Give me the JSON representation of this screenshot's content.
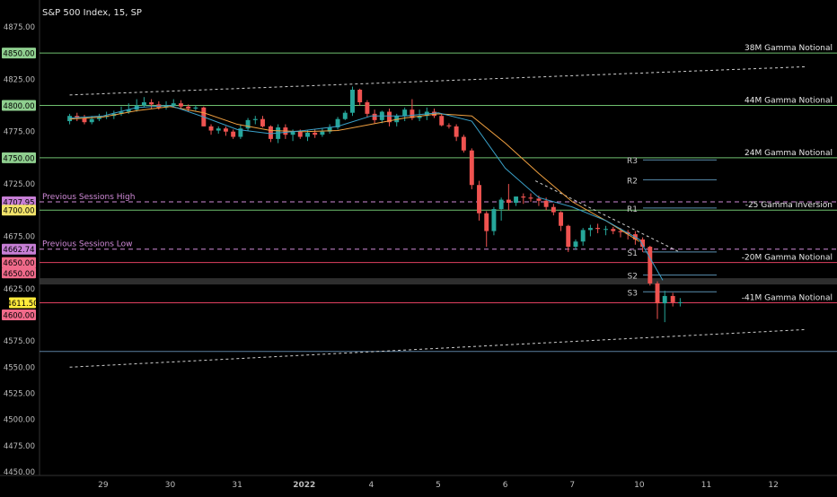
{
  "chart_data": {
    "type": "candlestick",
    "title": "S&P 500 Index, 15, SP",
    "ylim": [
      4450,
      4875
    ],
    "yticks": [
      "4875.00",
      "4850.00",
      "4825.00",
      "4800.00",
      "4775.00",
      "4750.00",
      "4725.00",
      "4700.00",
      "4675.00",
      "4650.00",
      "4625.00",
      "4600.00",
      "4575.00",
      "4550.00",
      "4525.00",
      "4500.00",
      "4475.00",
      "4450.00"
    ],
    "xticks": [
      {
        "label": "29",
        "x": 29.5
      },
      {
        "label": "30",
        "x": 30.5
      },
      {
        "label": "31",
        "x": 31.5
      },
      {
        "label": "2022",
        "x": 32.5
      },
      {
        "label": "4",
        "x": 33.5
      },
      {
        "label": "5",
        "x": 34.5
      },
      {
        "label": "6",
        "x": 35.5
      },
      {
        "label": "7",
        "x": 36.5
      },
      {
        "label": "10",
        "x": 37.5
      },
      {
        "label": "11",
        "x": 38.5
      },
      {
        "label": "12",
        "x": 39.5
      }
    ],
    "current_price_label": "4611.50",
    "price_badges": [
      {
        "text": "4850.00",
        "y": 4850,
        "color": "#8fcf8f"
      },
      {
        "text": "4800.00",
        "y": 4800,
        "color": "#8fcf8f"
      },
      {
        "text": "4750.00",
        "y": 4750,
        "color": "#8fcf8f"
      },
      {
        "text": "4707.95",
        "y": 4707.95,
        "color": "#c77fd6"
      },
      {
        "text": "4700.00",
        "y": 4700,
        "color": "#f2e36a"
      },
      {
        "text": "4662.74",
        "y": 4662.74,
        "color": "#c77fd6"
      },
      {
        "text": "4650.00",
        "y": 4650,
        "color": "#f06a8a"
      },
      {
        "text": "4650.00",
        "y": 4640,
        "color": "#f06a8a"
      },
      {
        "text": "4600.00",
        "y": 4600,
        "color": "#f06a8a"
      }
    ],
    "levels": [
      {
        "y": 4850,
        "label": "38M Gamma Notional",
        "color": "#6fbf6f",
        "style": "solid"
      },
      {
        "y": 4800,
        "label": "44M Gamma Notional",
        "color": "#6fbf6f",
        "style": "solid"
      },
      {
        "y": 4750,
        "label": "24M Gamma Notional",
        "color": "#6fbf6f",
        "style": "solid"
      },
      {
        "y": 4707.95,
        "label": "Previous Sessions High",
        "color": "#d08ad8",
        "style": "dashed"
      },
      {
        "y": 4700,
        "label": "-25 Gamma Inversion",
        "color": "#6fbf6f",
        "style": "solid"
      },
      {
        "y": 4662.74,
        "label": "Previous Sessions Low",
        "color": "#d08ad8",
        "style": "dashed"
      },
      {
        "y": 4650,
        "label": "-20M Gamma Notional",
        "color": "#e04060",
        "style": "solid"
      },
      {
        "y": 4611.5,
        "label": "-41M Gamma Notional",
        "color": "#e04060",
        "style": "solid"
      },
      {
        "y": 4565,
        "label": "",
        "color": "#5a7fa0",
        "style": "solid"
      }
    ],
    "pivots": [
      {
        "label": "R3",
        "y": 4748
      },
      {
        "label": "R2",
        "y": 4729
      },
      {
        "label": "R1",
        "y": 4702
      },
      {
        "label": "S1",
        "y": 4660
      },
      {
        "label": "S2",
        "y": 4638
      },
      {
        "label": "S3",
        "y": 4622
      }
    ],
    "trendlines": [
      {
        "x1": 29.0,
        "y1": 4810,
        "x2": 40.0,
        "y2": 4837
      },
      {
        "x1": 29.0,
        "y1": 4550,
        "x2": 40.0,
        "y2": 4586
      },
      {
        "x1": 35.95,
        "y1": 4728,
        "x2": 38.1,
        "y2": 4660
      }
    ],
    "series": [
      {
        "name": "",
        "kind": "ohlc",
        "color_up": "#26a69a",
        "color_down": "#ef5350",
        "x": [
          29.0,
          29.11,
          29.22,
          29.33,
          29.44,
          29.55,
          29.66,
          29.77,
          29.88,
          30.0,
          30.11,
          30.22,
          30.33,
          30.44,
          30.55,
          30.66,
          30.77,
          30.88,
          31.0,
          31.11,
          31.22,
          31.33,
          31.44,
          31.55,
          31.66,
          31.77,
          31.88,
          32.0,
          32.11,
          32.22,
          32.33,
          32.44,
          32.55,
          32.66,
          32.77,
          32.88,
          33.0,
          33.11,
          33.22,
          33.33,
          33.44,
          33.55,
          33.66,
          33.77,
          33.88,
          34.0,
          34.11,
          34.22,
          34.33,
          34.44,
          34.55,
          34.66,
          34.77,
          34.88,
          35.0,
          35.11,
          35.22,
          35.33,
          35.44,
          35.55,
          35.66,
          35.77,
          35.88,
          36.0,
          36.11,
          36.22,
          36.33,
          36.44,
          36.55,
          36.66,
          36.77,
          36.88,
          37.0,
          37.11,
          37.22,
          37.33,
          37.44,
          37.55,
          37.66,
          37.77,
          37.88,
          38.0,
          38.11
        ],
        "o": [
          4785,
          4790,
          4788,
          4784,
          4787,
          4789,
          4790,
          4792,
          4794,
          4796,
          4800,
          4803,
          4801,
          4798,
          4800,
          4802,
          4799,
          4797,
          4798,
          4780,
          4776,
          4778,
          4775,
          4770,
          4778,
          4786,
          4787,
          4780,
          4768,
          4779,
          4772,
          4775,
          4770,
          4774,
          4772,
          4775,
          4779,
          4787,
          4793,
          4815,
          4803,
          4792,
          4786,
          4794,
          4784,
          4790,
          4796,
          4788,
          4790,
          4794,
          4790,
          4781,
          4780,
          4770,
          4757,
          4724,
          4697,
          4680,
          4701,
          4710,
          4707,
          4713,
          4712,
          4711,
          4709,
          4703,
          4698,
          4685,
          4665,
          4670,
          4681,
          4683,
          4682,
          4682,
          4680,
          4679,
          4677,
          4672,
          4665,
          4630,
          4611,
          4618,
          4612
        ],
        "h": [
          4792,
          4793,
          4791,
          4790,
          4792,
          4794,
          4795,
          4799,
          4802,
          4806,
          4808,
          4806,
          4804,
          4804,
          4806,
          4805,
          4801,
          4800,
          4799,
          4782,
          4780,
          4780,
          4777,
          4782,
          4788,
          4790,
          4790,
          4781,
          4782,
          4782,
          4777,
          4777,
          4776,
          4777,
          4778,
          4782,
          4789,
          4795,
          4818,
          4816,
          4805,
          4796,
          4795,
          4797,
          4792,
          4798,
          4806,
          4796,
          4798,
          4797,
          4792,
          4783,
          4782,
          4772,
          4759,
          4728,
          4699,
          4703,
          4712,
          4725,
          4713,
          4716,
          4716,
          4714,
          4712,
          4706,
          4699,
          4686,
          4672,
          4683,
          4686,
          4687,
          4685,
          4684,
          4683,
          4681,
          4680,
          4674,
          4666,
          4632,
          4623,
          4621,
          4616
        ],
        "l": [
          4782,
          4785,
          4782,
          4782,
          4785,
          4787,
          4787,
          4790,
          4792,
          4794,
          4798,
          4797,
          4796,
          4796,
          4798,
          4796,
          4794,
          4795,
          4780,
          4772,
          4773,
          4771,
          4768,
          4768,
          4776,
          4782,
          4779,
          4765,
          4764,
          4768,
          4766,
          4768,
          4766,
          4769,
          4770,
          4773,
          4777,
          4786,
          4790,
          4800,
          4789,
          4783,
          4783,
          4780,
          4780,
          4785,
          4786,
          4785,
          4786,
          4788,
          4780,
          4778,
          4766,
          4755,
          4720,
          4690,
          4665,
          4676,
          4690,
          4700,
          4704,
          4706,
          4708,
          4704,
          4700,
          4695,
          4680,
          4660,
          4662,
          4666,
          4675,
          4678,
          4676,
          4677,
          4674,
          4672,
          4667,
          4660,
          4628,
          4596,
          4593,
          4608,
          4608
        ],
        "c": [
          4790,
          4788,
          4784,
          4787,
          4789,
          4790,
          4792,
          4794,
          4796,
          4800,
          4803,
          4801,
          4798,
          4800,
          4802,
          4799,
          4797,
          4798,
          4780,
          4776,
          4778,
          4775,
          4770,
          4778,
          4786,
          4787,
          4780,
          4768,
          4779,
          4772,
          4775,
          4770,
          4774,
          4772,
          4775,
          4779,
          4787,
          4793,
          4815,
          4803,
          4792,
          4786,
          4794,
          4784,
          4790,
          4796,
          4788,
          4790,
          4794,
          4790,
          4781,
          4780,
          4770,
          4757,
          4724,
          4697,
          4680,
          4701,
          4710,
          4707,
          4713,
          4712,
          4711,
          4709,
          4703,
          4698,
          4685,
          4665,
          4670,
          4681,
          4683,
          4682,
          4682,
          4680,
          4679,
          4677,
          4672,
          4665,
          4630,
          4611,
          4618,
          4612,
          4612
        ]
      },
      {
        "name": "",
        "kind": "line",
        "color": "#f0a040",
        "x": [
          29.0,
          29.5,
          30.0,
          30.5,
          31.0,
          31.5,
          32.0,
          32.5,
          33.0,
          33.5,
          34.0,
          34.5,
          35.0,
          35.5,
          36.0,
          36.5,
          37.0,
          37.5
        ],
        "y": [
          4787,
          4789,
          4795,
          4799,
          4793,
          4782,
          4776,
          4775,
          4776,
          4782,
          4788,
          4792,
          4790,
          4764,
          4735,
          4708,
          4690,
          4670
        ]
      },
      {
        "name": "",
        "kind": "line",
        "color": "#3aa0c8",
        "x": [
          29.0,
          29.5,
          30.0,
          30.5,
          31.0,
          31.5,
          32.0,
          32.5,
          33.0,
          33.5,
          34.0,
          34.5,
          35.0,
          35.5,
          36.0,
          36.5,
          37.0,
          37.5,
          37.85
        ],
        "y": [
          4788,
          4790,
          4798,
          4800,
          4789,
          4777,
          4773,
          4776,
          4780,
          4790,
          4790,
          4793,
          4785,
          4740,
          4712,
          4703,
          4690,
          4672,
          4633
        ]
      }
    ]
  }
}
